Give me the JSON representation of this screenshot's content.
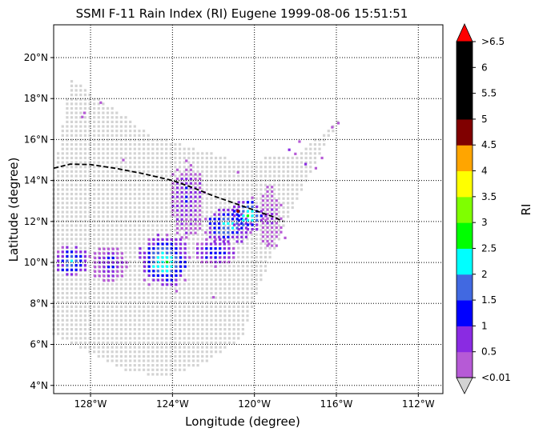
{
  "title": "SSMI F-11 Rain Index (RI) Eugene 1999-08-06 15:51:51",
  "xlabel": "Longitude (degree)",
  "ylabel": "Latitude (degree)",
  "colorbar_label": "RI",
  "chart_data": {
    "type": "heatmap",
    "title": "SSMI F-11 Rain Index (RI) Eugene 1999-08-06 15:51:51",
    "xlabel": "Longitude (degree)",
    "ylabel": "Latitude (degree)",
    "xlim": [
      -129.8,
      -110.8
    ],
    "ylim": [
      3.6,
      21.6
    ],
    "grid": true,
    "x_ticks": [
      {
        "value": -128,
        "label": "128°W"
      },
      {
        "value": -124,
        "label": "124°W"
      },
      {
        "value": -120,
        "label": "120°W"
      },
      {
        "value": -116,
        "label": "116°W"
      },
      {
        "value": -112,
        "label": "112°W"
      }
    ],
    "y_ticks": [
      {
        "value": 4,
        "label": "4°N"
      },
      {
        "value": 6,
        "label": "6°N"
      },
      {
        "value": 8,
        "label": "8°N"
      },
      {
        "value": 10,
        "label": "10°N"
      },
      {
        "value": 12,
        "label": "12°N"
      },
      {
        "value": 14,
        "label": "14°N"
      },
      {
        "value": 16,
        "label": "16°N"
      },
      {
        "value": 18,
        "label": "18°N"
      },
      {
        "value": 20,
        "label": "20°N"
      }
    ],
    "no_rain_color": "#d3d3d3",
    "colorbar": {
      "label": "RI",
      "under_color": "#d3d3d3",
      "over_color": "#ff0000",
      "bins": [
        {
          "label": "<0.01",
          "color": "#b65ad6"
        },
        {
          "label": "0.5",
          "color": "#8a2be2"
        },
        {
          "label": "1",
          "color": "#0000ff"
        },
        {
          "label": "1.5",
          "color": "#4169e1"
        },
        {
          "label": "2",
          "color": "#00ffff"
        },
        {
          "label": "2.5",
          "color": "#00ff00"
        },
        {
          "label": "3",
          "color": "#7fff00"
        },
        {
          "label": "3.5",
          "color": "#ffff00"
        },
        {
          "label": "4",
          "color": "#ffa500"
        },
        {
          "label": "4.5",
          "color": "#800000"
        },
        {
          "label": "5",
          "color": "#000000"
        },
        {
          "label": "5.5",
          "color": "#000000"
        },
        {
          "label": "6",
          "color": "#000000"
        }
      ],
      "top_label": ">6.5"
    },
    "swath_outline": [
      [
        -129.0,
        19.0
      ],
      [
        -125.0,
        16.2
      ],
      [
        -121.0,
        15.0
      ],
      [
        -118.0,
        15.2
      ],
      [
        -115.8,
        17.0
      ],
      [
        -116.5,
        15.8
      ],
      [
        -118.5,
        11.8
      ],
      [
        -119.5,
        9.5
      ],
      [
        -120.6,
        6.3
      ],
      [
        -122.5,
        5.0
      ],
      [
        -124.5,
        4.4
      ],
      [
        -126.5,
        4.8
      ],
      [
        -128.5,
        5.8
      ],
      [
        -129.8,
        6.5
      ],
      [
        -129.8,
        14.0
      ]
    ],
    "rain_cells": [
      {
        "lon": -128.4,
        "lat": 17.1,
        "ri": 0.4
      },
      {
        "lon": -128.3,
        "lat": 17.3,
        "ri": 0.4
      },
      {
        "lon": -127.5,
        "lat": 17.8,
        "ri": 0.4
      },
      {
        "lon": -126.4,
        "lat": 15.0,
        "ri": 0.4
      },
      {
        "lon": -116.2,
        "lat": 16.6,
        "ri": 0.4
      },
      {
        "lon": -115.9,
        "lat": 16.8,
        "ri": 0.4
      },
      {
        "lon": -117.8,
        "lat": 15.9,
        "ri": 0.4
      },
      {
        "lon": -118.3,
        "lat": 15.5,
        "ri": 0.8
      },
      {
        "lon": -118.0,
        "lat": 15.3,
        "ri": 0.4
      },
      {
        "lon": -117.5,
        "lat": 14.8,
        "ri": 0.8
      },
      {
        "lon": -117.0,
        "lat": 14.6,
        "ri": 0.4
      },
      {
        "lon": -116.7,
        "lat": 15.1,
        "ri": 0.4
      },
      {
        "lon": -120.8,
        "lat": 14.4,
        "ri": 0.4
      },
      {
        "lon": -118.5,
        "lat": 11.2,
        "ri": 0.4
      },
      {
        "lon": -119.3,
        "lat": 10.9,
        "ri": 0.4
      },
      {
        "lon": -123.8,
        "lat": 8.6,
        "ri": 0.4
      },
      {
        "lon": -122.0,
        "lat": 8.3,
        "ri": 0.4
      }
    ],
    "rain_bands": [
      {
        "lon0": -129.8,
        "lon1": -128.0,
        "lat0": 9.2,
        "lat1": 10.9,
        "core": 2.2
      },
      {
        "lon0": -128.0,
        "lon1": -126.2,
        "lat0": 8.9,
        "lat1": 10.9,
        "core": 1.2
      },
      {
        "lon0": -125.8,
        "lon1": -123.0,
        "lat0": 8.7,
        "lat1": 11.4,
        "core": 2.8
      },
      {
        "lon0": -123.0,
        "lon1": -120.8,
        "lat0": 9.8,
        "lat1": 11.2,
        "core": 1.6
      },
      {
        "lon0": -124.2,
        "lon1": -122.4,
        "lat0": 11.0,
        "lat1": 15.0,
        "core": 1.1
      },
      {
        "lon0": -122.6,
        "lon1": -120.0,
        "lat0": 10.8,
        "lat1": 12.8,
        "core": 2.4
      },
      {
        "lon0": -121.2,
        "lon1": -119.4,
        "lat0": 11.4,
        "lat1": 13.2,
        "core": 2.8
      },
      {
        "lon0": -119.8,
        "lon1": -118.6,
        "lat0": 10.6,
        "lat1": 13.8,
        "core": 0.6
      }
    ],
    "track": [
      [
        -129.8,
        14.6
      ],
      [
        -129.0,
        14.8
      ],
      [
        -128.0,
        14.78
      ],
      [
        -126.8,
        14.6
      ],
      [
        -125.5,
        14.35
      ],
      [
        -124.0,
        14.0
      ],
      [
        -123.0,
        13.65
      ],
      [
        -122.0,
        13.25
      ],
      [
        -121.0,
        12.9
      ],
      [
        -120.0,
        12.55
      ],
      [
        -119.0,
        12.2
      ],
      [
        -118.6,
        12.0
      ]
    ],
    "storm_center": {
      "lon": -120.8,
      "lat": 12.5
    }
  }
}
